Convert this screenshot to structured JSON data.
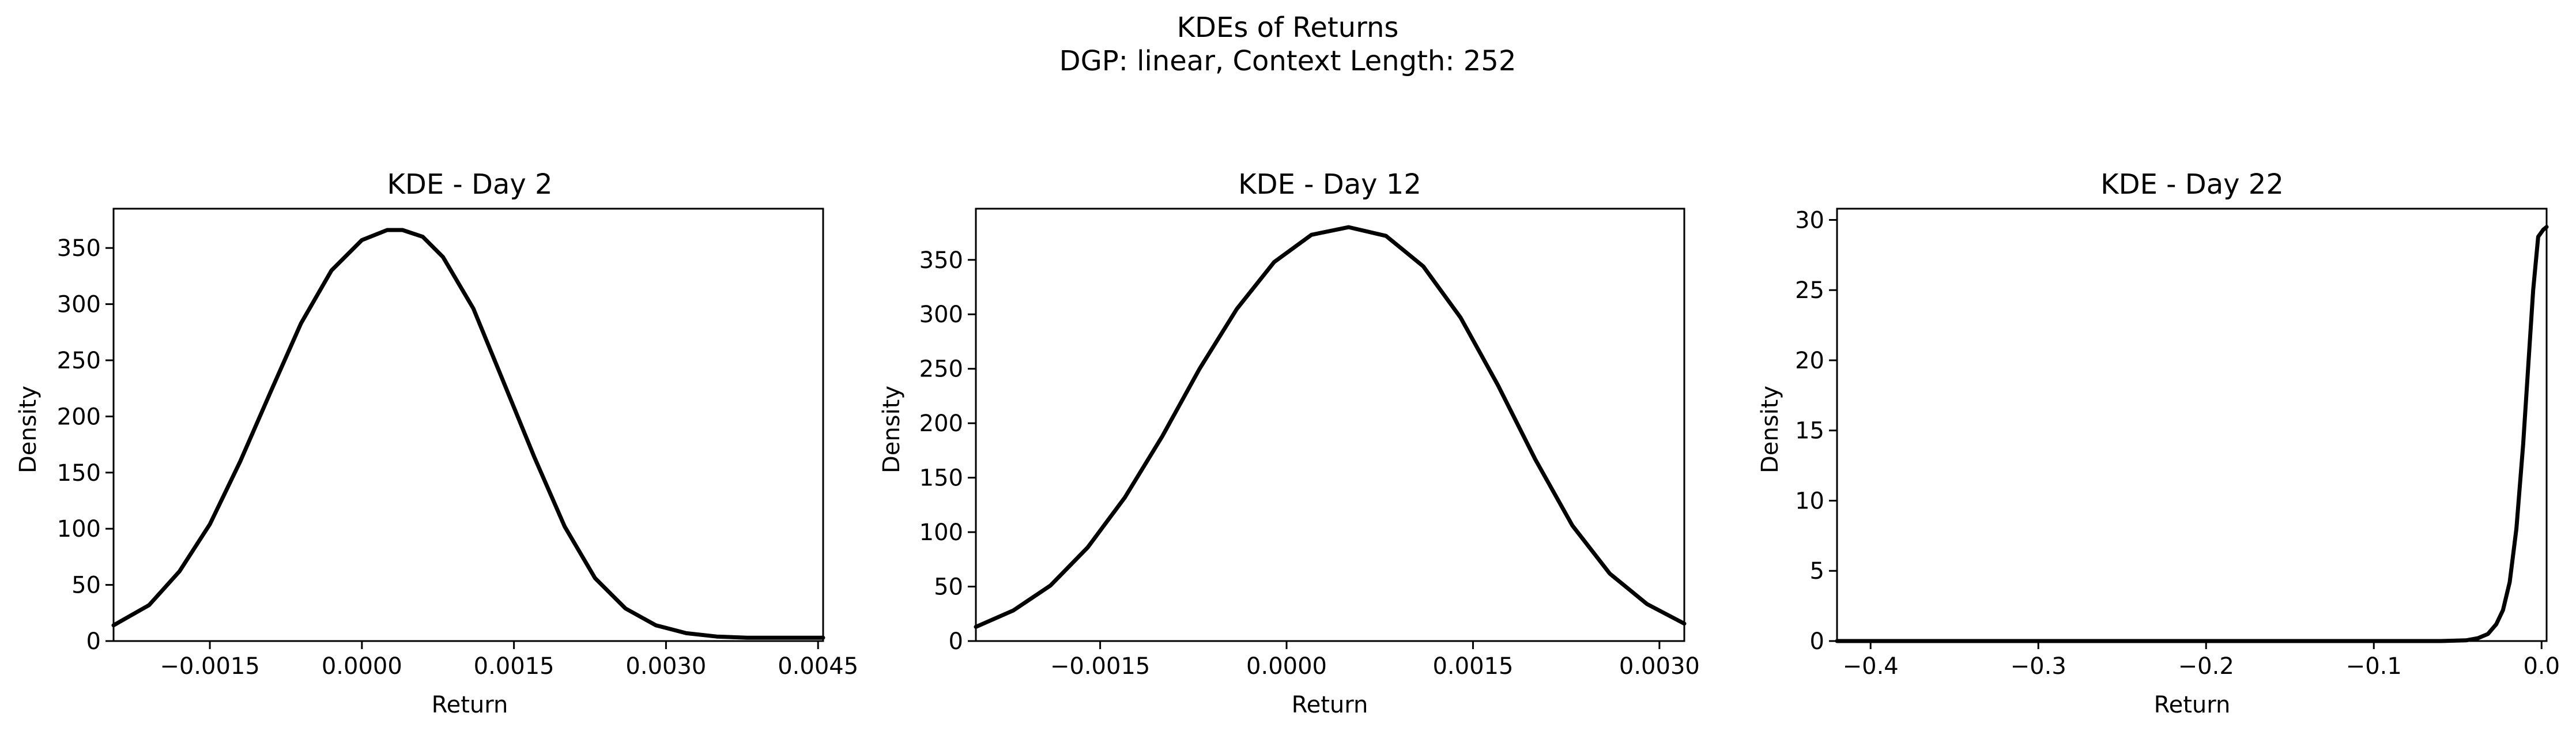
{
  "figure": {
    "suptitle_line1": "KDEs of Returns",
    "suptitle_line2": "DGP: linear, Context Length: 252"
  },
  "chart_data": [
    {
      "type": "line",
      "title": "KDE - Day 2",
      "xlabel": "Return",
      "ylabel": "Density",
      "xlim": [
        -0.00245,
        0.00455
      ],
      "ylim": [
        0,
        385
      ],
      "xticks": [
        -0.0015,
        0.0,
        0.0015,
        0.003,
        0.0045
      ],
      "xtick_labels": [
        "−0.0015",
        "0.0000",
        "0.0015",
        "0.0030",
        "0.0045"
      ],
      "yticks": [
        0,
        50,
        100,
        150,
        200,
        250,
        300,
        350
      ],
      "ytick_labels": [
        "0",
        "50",
        "100",
        "150",
        "200",
        "250",
        "300",
        "350"
      ],
      "grid": false,
      "line_color": "#000000",
      "series": [
        {
          "x": [
            -0.00245,
            -0.0021,
            -0.0018,
            -0.0015,
            -0.0012,
            -0.0009,
            -0.0006,
            -0.0003,
            0.0,
            0.00025,
            0.0004,
            0.0006,
            0.0008,
            0.0011,
            0.0014,
            0.0017,
            0.002,
            0.0023,
            0.0026,
            0.0029,
            0.0032,
            0.0035,
            0.0038,
            0.0041,
            0.00455
          ],
          "y": [
            14,
            32,
            62,
            104,
            160,
            222,
            283,
            330,
            357,
            366,
            366,
            360,
            342,
            296,
            230,
            164,
            102,
            56,
            29,
            14,
            7,
            4,
            3,
            3,
            3
          ]
        }
      ]
    },
    {
      "type": "line",
      "title": "KDE - Day 12",
      "xlabel": "Return",
      "ylabel": "Density",
      "xlim": [
        -0.0025,
        0.0032
      ],
      "ylim": [
        0,
        397
      ],
      "xticks": [
        -0.0015,
        0.0,
        0.0015,
        0.003
      ],
      "xtick_labels": [
        "−0.0015",
        "0.0000",
        "0.0015",
        "0.0030"
      ],
      "yticks": [
        0,
        50,
        100,
        150,
        200,
        250,
        300,
        350
      ],
      "ytick_labels": [
        "0",
        "50",
        "100",
        "150",
        "200",
        "250",
        "300",
        "350"
      ],
      "grid": false,
      "line_color": "#000000",
      "series": [
        {
          "x": [
            -0.0025,
            -0.0022,
            -0.0019,
            -0.0016,
            -0.0013,
            -0.001,
            -0.0007,
            -0.0004,
            -0.0001,
            0.0002,
            0.0005,
            0.0008,
            0.0011,
            0.0014,
            0.0017,
            0.002,
            0.0023,
            0.0026,
            0.0029,
            0.0032
          ],
          "y": [
            13,
            28,
            51,
            86,
            132,
            188,
            250,
            305,
            348,
            373,
            380,
            372,
            344,
            297,
            235,
            167,
            106,
            62,
            34,
            16
          ]
        }
      ]
    },
    {
      "type": "line",
      "title": "KDE - Day 22",
      "xlabel": "Return",
      "ylabel": "Density",
      "xlim": [
        -0.42,
        0.003
      ],
      "ylim": [
        0,
        30.8
      ],
      "xticks": [
        -0.4,
        -0.3,
        -0.2,
        -0.1,
        0.0
      ],
      "xtick_labels": [
        "−0.4",
        "−0.3",
        "−0.2",
        "−0.1",
        "0.0"
      ],
      "yticks": [
        0,
        5,
        10,
        15,
        20,
        25,
        30
      ],
      "ytick_labels": [
        "0",
        "5",
        "10",
        "15",
        "20",
        "25",
        "30"
      ],
      "grid": false,
      "line_color": "#000000",
      "series": [
        {
          "x": [
            -0.42,
            -0.3,
            -0.2,
            -0.1,
            -0.06,
            -0.045,
            -0.038,
            -0.032,
            -0.027,
            -0.023,
            -0.019,
            -0.015,
            -0.011,
            -0.008,
            -0.005,
            -0.002,
            0.001,
            0.003
          ],
          "y": [
            0,
            0,
            0,
            0,
            0,
            0.05,
            0.2,
            0.5,
            1.2,
            2.2,
            4.2,
            8,
            14,
            19.5,
            25,
            28.8,
            29.3,
            29.5
          ]
        }
      ]
    }
  ]
}
